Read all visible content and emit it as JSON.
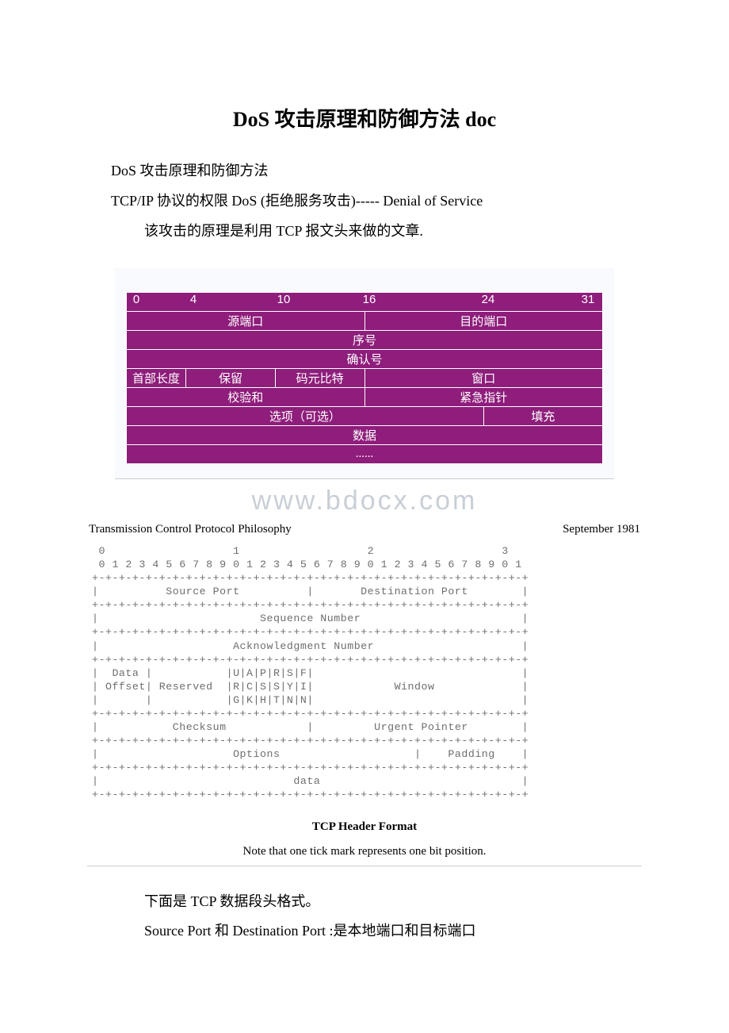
{
  "title": "DoS 攻击原理和防御方法 doc",
  "intro": {
    "line1": "DoS 攻击原理和防御方法",
    "line2": "TCP/IP 协议的权限 DoS (拒绝服务攻击)----- Denial of Service",
    "line3": "该攻击的原理是利用 TCP 报文头来做的文章."
  },
  "figure1": {
    "background_color": "#f8fafd",
    "cell_bg": "#8e1d7b",
    "cell_border": "#ffffff",
    "cell_text_color": "#ffffff",
    "ruler_ticks": [
      {
        "pos_pct": 2,
        "label": "0"
      },
      {
        "pos_pct": 14,
        "label": "4"
      },
      {
        "pos_pct": 33,
        "label": "10"
      },
      {
        "pos_pct": 51,
        "label": "16"
      },
      {
        "pos_pct": 76,
        "label": "24"
      },
      {
        "pos_pct": 97,
        "label": "31"
      }
    ],
    "rows": [
      [
        {
          "span": 16,
          "text": "源端口"
        },
        {
          "span": 16,
          "text": "目的端口"
        }
      ],
      [
        {
          "span": 32,
          "text": "序号"
        }
      ],
      [
        {
          "span": 32,
          "text": "确认号"
        }
      ],
      [
        {
          "span": 4,
          "text": "首部长度"
        },
        {
          "span": 6,
          "text": "保留"
        },
        {
          "span": 6,
          "text": "码元比特"
        },
        {
          "span": 16,
          "text": "窗口"
        }
      ],
      [
        {
          "span": 16,
          "text": "校验和"
        },
        {
          "span": 16,
          "text": "紧急指针"
        }
      ],
      [
        {
          "span": 24,
          "text": "选项（可选）"
        },
        {
          "span": 8,
          "text": "填充"
        }
      ],
      [
        {
          "span": 32,
          "text": "数据"
        }
      ],
      [
        {
          "span": 32,
          "text": "......"
        }
      ]
    ]
  },
  "watermark": "www.bdocx.com",
  "figure2": {
    "header_left": "Transmission Control Protocol Philosophy",
    "header_right": "September 1981",
    "ascii": " 0                   1                   2                   3\n 0 1 2 3 4 5 6 7 8 9 0 1 2 3 4 5 6 7 8 9 0 1 2 3 4 5 6 7 8 9 0 1\n+-+-+-+-+-+-+-+-+-+-+-+-+-+-+-+-+-+-+-+-+-+-+-+-+-+-+-+-+-+-+-+-+\n|          Source Port          |       Destination Port        |\n+-+-+-+-+-+-+-+-+-+-+-+-+-+-+-+-+-+-+-+-+-+-+-+-+-+-+-+-+-+-+-+-+\n|                        Sequence Number                        |\n+-+-+-+-+-+-+-+-+-+-+-+-+-+-+-+-+-+-+-+-+-+-+-+-+-+-+-+-+-+-+-+-+\n|                    Acknowledgment Number                      |\n+-+-+-+-+-+-+-+-+-+-+-+-+-+-+-+-+-+-+-+-+-+-+-+-+-+-+-+-+-+-+-+-+\n|  Data |           |U|A|P|R|S|F|                               |\n| Offset| Reserved  |R|C|S|S|Y|I|            Window             |\n|       |           |G|K|H|T|N|N|                               |\n+-+-+-+-+-+-+-+-+-+-+-+-+-+-+-+-+-+-+-+-+-+-+-+-+-+-+-+-+-+-+-+-+\n|           Checksum            |         Urgent Pointer        |\n+-+-+-+-+-+-+-+-+-+-+-+-+-+-+-+-+-+-+-+-+-+-+-+-+-+-+-+-+-+-+-+-+\n|                    Options                    |    Padding    |\n+-+-+-+-+-+-+-+-+-+-+-+-+-+-+-+-+-+-+-+-+-+-+-+-+-+-+-+-+-+-+-+-+\n|                             data                              |\n+-+-+-+-+-+-+-+-+-+-+-+-+-+-+-+-+-+-+-+-+-+-+-+-+-+-+-+-+-+-+-+-+",
    "caption": "TCP Header Format",
    "note": "Note that one tick mark represents one bit position."
  },
  "outro": {
    "line1": "下面是 TCP 数据段头格式。",
    "line2": "Source Port 和 Destination Port :是本地端口和目标端口"
  }
}
